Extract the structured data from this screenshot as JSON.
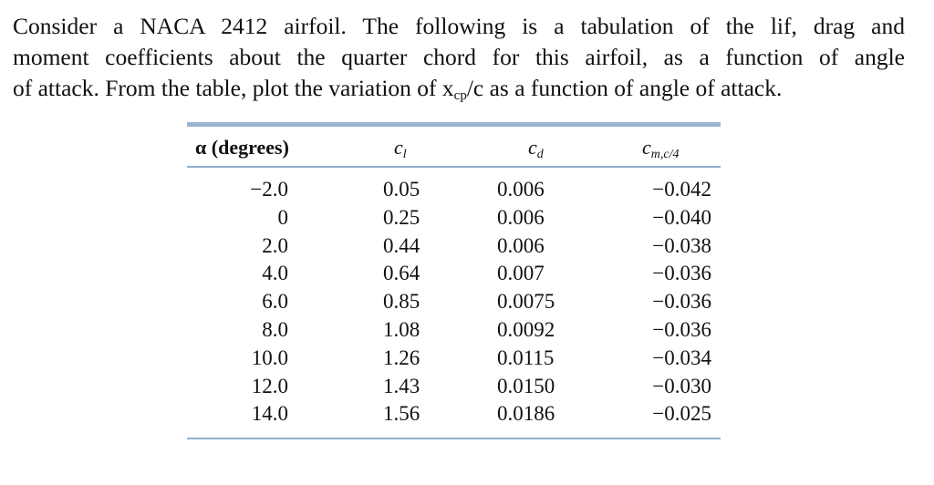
{
  "problem": {
    "lines": [
      "Consider a NACA 2412 airfoil.  The following is a tabulation of the lif, drag and",
      "moment coefficients about the quarter chord for this airfoil, as a function of angle"
    ],
    "last_line": {
      "before": "of attack.  From the table, plot the variation of ",
      "symbol": "x",
      "subscript": "cp",
      "after": "/c as a function of angle of attack."
    }
  },
  "table": {
    "header": [
      {
        "symbol": "α (degrees)",
        "subscript": null
      },
      {
        "symbol": "c",
        "subscript": "l"
      },
      {
        "symbol": "c",
        "subscript": "d"
      },
      {
        "symbol": "c",
        "subscript": "m,c/4"
      }
    ],
    "rows": [
      [
        "−2.0",
        "0.05",
        "0.006",
        "−0.042"
      ],
      [
        "0",
        "0.25",
        "0.006",
        "−0.040"
      ],
      [
        "2.0",
        "0.44",
        "0.006",
        "−0.038"
      ],
      [
        "4.0",
        "0.64",
        "0.007",
        "−0.036"
      ],
      [
        "6.0",
        "0.85",
        "0.0075",
        "−0.036"
      ],
      [
        "8.0",
        "1.08",
        "0.0092",
        "−0.036"
      ],
      [
        "10.0",
        "1.26",
        "0.0115",
        "−0.034"
      ],
      [
        "12.0",
        "1.43",
        "0.0150",
        "−0.030"
      ],
      [
        "14.0",
        "1.56",
        "0.0186",
        "−0.025"
      ]
    ]
  }
}
